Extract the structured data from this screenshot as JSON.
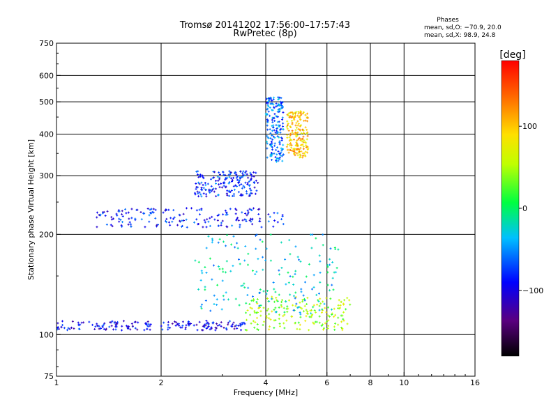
{
  "chart_data": {
    "type": "scatter",
    "title": "Tromsø 20141202 17:56:00–17:57:43",
    "subtitle": "RwPretec (8p)",
    "stats": {
      "heading": "Phases",
      "line_o": "mean, sd,O: −70.9, 20.0",
      "line_x": "mean, sd,X:  98.9, 24.8"
    },
    "xlabel": "Frequency [MHz]",
    "ylabel": "Stationary phase Virtual Height [km]",
    "x_scale": "log",
    "y_scale": "log",
    "xlim": [
      1,
      16
    ],
    "ylim": [
      75,
      750
    ],
    "x_ticks": [
      1,
      2,
      4,
      6,
      8,
      10,
      16
    ],
    "x_tick_labels": [
      "1",
      "2",
      "4",
      "6",
      "8",
      "10",
      "16"
    ],
    "y_ticks": [
      75,
      100,
      200,
      300,
      400,
      500,
      600,
      750
    ],
    "y_tick_labels": [
      "75",
      "100",
      "200",
      "300",
      "400",
      "500",
      "600",
      "750"
    ],
    "x_grid": [
      2,
      4,
      6,
      8,
      10
    ],
    "y_grid": [
      100,
      200,
      300,
      400,
      500,
      600
    ],
    "grid": true,
    "colorbar": {
      "label": "[deg]",
      "min": -180,
      "max": 180,
      "ticks": [
        -100,
        0,
        100
      ],
      "tick_labels": [
        "−100",
        "0",
        "100"
      ]
    },
    "clusters": [
      {
        "region": "o-trace lower branch",
        "x_range": [
          1.0,
          3.5
        ],
        "y_range": [
          103,
          110
        ],
        "phase": -95
      },
      {
        "region": "x-trace lower branch",
        "x_range": [
          3.5,
          7.0
        ],
        "y_range": [
          103,
          130
        ],
        "phase": 50
      },
      {
        "region": "o-trace F-layer",
        "x_range": [
          1.3,
          4.5
        ],
        "y_range": [
          210,
          240
        ],
        "phase": -85
      },
      {
        "region": "o-trace upper F",
        "x_range": [
          2.5,
          3.8
        ],
        "y_range": [
          260,
          310
        ],
        "phase": -80
      },
      {
        "region": "o-trace cusp",
        "x_range": [
          4.0,
          4.5
        ],
        "y_range": [
          330,
          520
        ],
        "phase": -60
      },
      {
        "region": "x-trace cusp",
        "x_range": [
          4.6,
          5.3
        ],
        "y_range": [
          340,
          470
        ],
        "phase": 100
      },
      {
        "region": "cloud",
        "x_range": [
          2.5,
          6.5
        ],
        "y_range": [
          115,
          200
        ],
        "phase": -30
      }
    ]
  }
}
